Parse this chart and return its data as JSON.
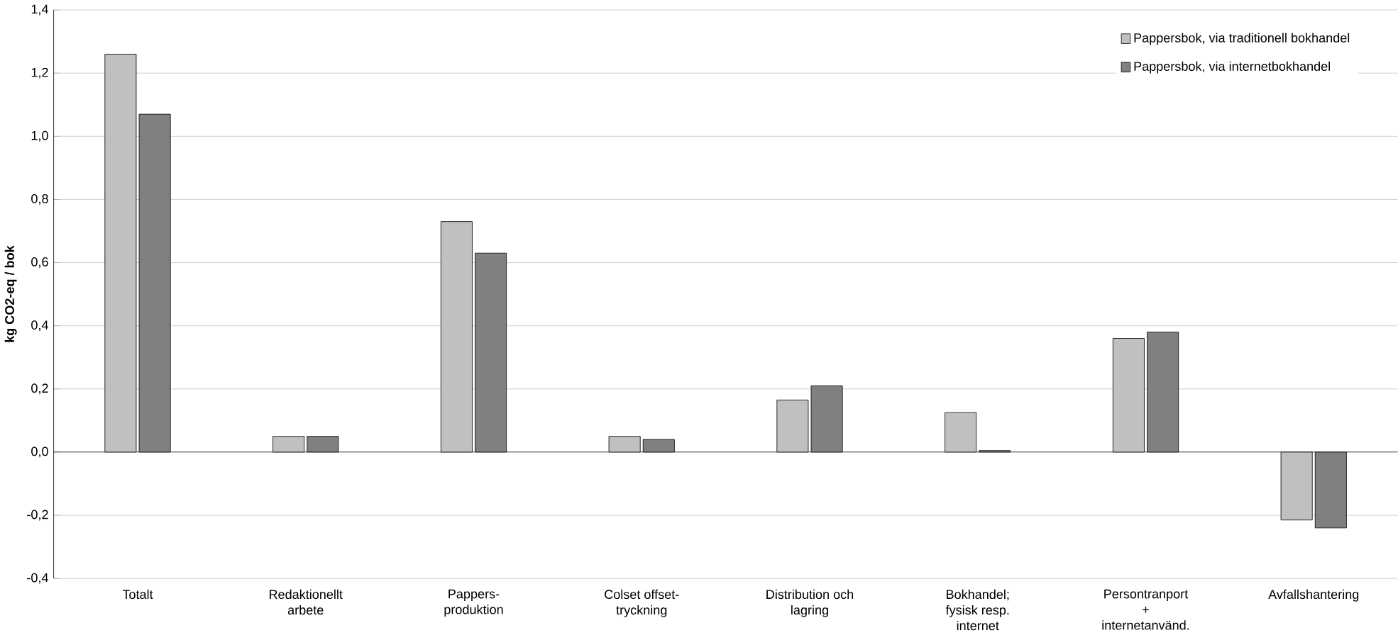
{
  "chart_data": {
    "type": "bar",
    "ylabel": "kg CO2-eq / bok",
    "categories": [
      "Totalt",
      "Redaktionellt arbete",
      "Pappers- produktion",
      "Colset offset- tryckning",
      "Distribution och lagring",
      "Bokhandel; fysisk resp. internet",
      "Persontranport + internetanvänd.",
      "Avfallshantering"
    ],
    "series": [
      {
        "name": "Pappersbok, via traditionell bokhandel",
        "color": "#c0c0c0",
        "values": [
          1.26,
          0.05,
          0.73,
          0.05,
          0.165,
          0.125,
          0.36,
          -0.215
        ]
      },
      {
        "name": "Pappersbok, via internetbokhandel",
        "color": "#808080",
        "values": [
          1.07,
          0.05,
          0.63,
          0.04,
          0.21,
          0.005,
          0.38,
          -0.24
        ]
      }
    ],
    "ylim": [
      -0.4,
      1.4
    ],
    "yticks": [
      {
        "value": -0.4,
        "label": "-0,4"
      },
      {
        "value": -0.2,
        "label": "-0,2"
      },
      {
        "value": 0,
        "label": "0,0"
      },
      {
        "value": 0.2,
        "label": "0,2"
      },
      {
        "value": 0.4,
        "label": "0,4"
      },
      {
        "value": 0.6,
        "label": "0,6"
      },
      {
        "value": 0.8,
        "label": "0,8"
      },
      {
        "value": 1.0,
        "label": "1,0"
      },
      {
        "value": 1.2,
        "label": "1,2"
      },
      {
        "value": 1.4,
        "label": "1,4"
      }
    ],
    "grid": "y",
    "legend": "top right"
  }
}
